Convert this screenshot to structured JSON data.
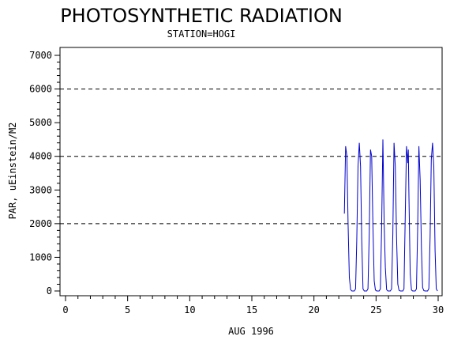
{
  "chart_data": {
    "type": "line",
    "title": "PHOTOSYNTHETIC RADIATION",
    "subtitle": "STATION=HOGI",
    "xlabel": "AUG 1996",
    "ylabel": "PAR, uEinstein/M2",
    "xlim": [
      0,
      30
    ],
    "ylim": [
      0,
      7000
    ],
    "x_ticks": [
      0,
      5,
      10,
      15,
      20,
      25,
      30
    ],
    "y_ticks": [
      0,
      1000,
      2000,
      3000,
      4000,
      5000,
      6000,
      7000
    ],
    "reference_lines": [
      2000,
      4000,
      6000
    ],
    "series_color": "#0000cc",
    "x": [
      22.45,
      22.55,
      22.65,
      22.75,
      22.85,
      22.95,
      23.05,
      23.15,
      23.25,
      23.35,
      23.45,
      23.55,
      23.65,
      23.75,
      23.85,
      23.95,
      24.05,
      24.15,
      24.25,
      24.35,
      24.45,
      24.55,
      24.65,
      24.75,
      24.85,
      24.95,
      25.05,
      25.15,
      25.25,
      25.35,
      25.45,
      25.55,
      25.6,
      25.65,
      25.75,
      25.85,
      25.95,
      26.05,
      26.15,
      26.25,
      26.35,
      26.45,
      26.55,
      26.65,
      26.75,
      26.85,
      26.95,
      27.05,
      27.15,
      27.25,
      27.35,
      27.45,
      27.55,
      27.6,
      27.65,
      27.75,
      27.85,
      27.95,
      28.05,
      28.15,
      28.25,
      28.35,
      28.45,
      28.55,
      28.65,
      28.75,
      28.85,
      28.95,
      29.05,
      29.15,
      29.25,
      29.35,
      29.45,
      29.55,
      29.65,
      29.75,
      29.85,
      29.95
    ],
    "y": [
      2300,
      4300,
      4000,
      2000,
      400,
      40,
      0,
      0,
      0,
      60,
      1500,
      3700,
      4400,
      3700,
      1500,
      60,
      0,
      0,
      0,
      60,
      1700,
      4200,
      4000,
      1900,
      300,
      30,
      0,
      0,
      0,
      60,
      1900,
      4500,
      3300,
      2000,
      700,
      40,
      0,
      0,
      0,
      60,
      1700,
      4400,
      3700,
      1600,
      200,
      20,
      0,
      0,
      0,
      60,
      2200,
      4300,
      3800,
      4200,
      2800,
      500,
      30,
      0,
      0,
      0,
      60,
      1800,
      4300,
      3300,
      1300,
      100,
      10,
      0,
      0,
      0,
      70,
      1600,
      3900,
      4400,
      3700,
      1200,
      60,
      0
    ]
  }
}
